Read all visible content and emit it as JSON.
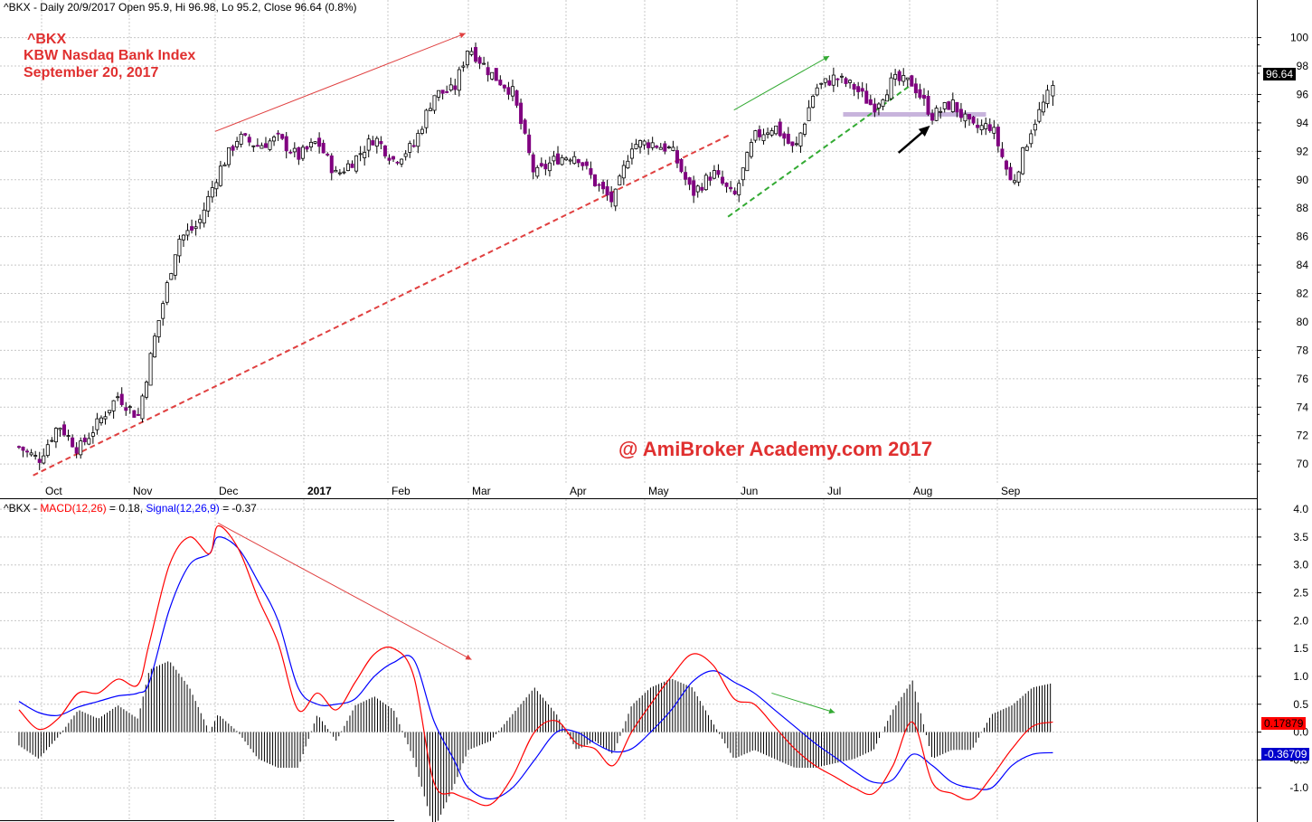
{
  "header": {
    "price": "^BKX - Daily 20/9/2017 Open 95.9, Hi 96.98, Lo 95.2, Close 96.64 (0.8%)",
    "macd_sym": "^BKX - ",
    "macd_part": "MACD(12,26)",
    "macd_val": " = 0.18, ",
    "signal_part": "Signal(12,26,9)",
    "signal_val": " = -0.37"
  },
  "title_block": {
    "line1": "^BKX",
    "line2": "KBW Nasdaq Bank Index",
    "line3": "September 20, 2017"
  },
  "watermark": "@ AmiBroker Academy.com    2017",
  "value_tags": {
    "close": "96.64",
    "macd": "0.17879",
    "signal": "-0.36709"
  },
  "colors": {
    "bull_body": "#ffffff",
    "bear_body": "#800080",
    "wick": "#000000",
    "macd_line": "#ff0000",
    "signal_line": "#0000ff",
    "histogram": "#000000",
    "trend_red": "#e04040",
    "trend_green": "#33aa33",
    "support_zone": "#c8b4dc",
    "annotation_arrow": "#000000",
    "watermark": "#e03030",
    "title": "#e03030",
    "close_tag": "#000000",
    "macd_tag": "#ff0000",
    "signal_tag": "#0000cc"
  },
  "chart_data": [
    {
      "type": "candlestick",
      "title": "^BKX - Daily 20/9/2017 Open 95.9, Hi 96.98, Lo 95.2, Close 96.64 (0.8%)",
      "x_tick_labels": [
        "Oct",
        "Nov",
        "Dec",
        "2017",
        "Feb",
        "Mar",
        "Apr",
        "May",
        "Jun",
        "Jul",
        "Aug",
        "Sep"
      ],
      "y_tick_labels": [
        70,
        72,
        74,
        76,
        78,
        80,
        82,
        84,
        86,
        88,
        90,
        92,
        94,
        96,
        98,
        100
      ],
      "ylim": [
        68.8,
        101.5
      ],
      "grid": true,
      "last_close": 96.64,
      "support_zone": {
        "date_start": "2017-07-08",
        "date_end": "2017-08-28",
        "price": 94.6
      },
      "trendlines": [
        {
          "style": "solid",
          "color": "red",
          "x": [
            "2016-12-01",
            "2017-02-28"
          ],
          "y": [
            93.4,
            100.3
          ]
        },
        {
          "style": "dashed",
          "color": "red",
          "x": [
            "2016-09-28",
            "2017-05-30"
          ],
          "y": [
            69.2,
            93.2
          ]
        },
        {
          "style": "solid",
          "color": "green",
          "x": [
            "2017-05-31",
            "2017-07-03"
          ],
          "y": [
            94.9,
            98.7
          ]
        },
        {
          "style": "dashed",
          "color": "green",
          "x": [
            "2017-05-29",
            "2017-08-01"
          ],
          "y": [
            87.4,
            96.6
          ]
        }
      ],
      "arrow": {
        "color": "black",
        "x": [
          "2017-07-28",
          "2017-08-07"
        ],
        "y": [
          91.9,
          93.6
        ]
      },
      "closes": [
        {
          "x": "2016-09-23",
          "y": 71.2
        },
        {
          "x": "2016-09-30",
          "y": 70.3
        },
        {
          "x": "2016-10-07",
          "y": 72.8
        },
        {
          "x": "2016-10-14",
          "y": 71.0
        },
        {
          "x": "2016-10-21",
          "y": 72.9
        },
        {
          "x": "2016-10-28",
          "y": 74.8
        },
        {
          "x": "2016-11-04",
          "y": 73.3
        },
        {
          "x": "2016-11-10",
          "y": 79.0
        },
        {
          "x": "2016-11-18",
          "y": 85.8
        },
        {
          "x": "2016-11-25",
          "y": 86.8
        },
        {
          "x": "2016-12-02",
          "y": 90.5
        },
        {
          "x": "2016-12-09",
          "y": 93.0
        },
        {
          "x": "2016-12-16",
          "y": 92.4
        },
        {
          "x": "2016-12-23",
          "y": 92.9
        },
        {
          "x": "2016-12-30",
          "y": 91.6
        },
        {
          "x": "2017-01-06",
          "y": 92.7
        },
        {
          "x": "2017-01-13",
          "y": 90.3
        },
        {
          "x": "2017-01-20",
          "y": 91.5
        },
        {
          "x": "2017-01-27",
          "y": 93.0
        },
        {
          "x": "2017-02-03",
          "y": 91.4
        },
        {
          "x": "2017-02-10",
          "y": 92.4
        },
        {
          "x": "2017-02-17",
          "y": 96.0
        },
        {
          "x": "2017-02-24",
          "y": 96.3
        },
        {
          "x": "2017-03-01",
          "y": 99.4
        },
        {
          "x": "2017-03-08",
          "y": 97.5
        },
        {
          "x": "2017-03-15",
          "y": 96.2
        },
        {
          "x": "2017-03-22",
          "y": 90.3
        },
        {
          "x": "2017-03-29",
          "y": 91.5
        },
        {
          "x": "2017-04-05",
          "y": 91.8
        },
        {
          "x": "2017-04-12",
          "y": 89.8
        },
        {
          "x": "2017-04-19",
          "y": 88.4
        },
        {
          "x": "2017-04-26",
          "y": 92.5
        },
        {
          "x": "2017-05-03",
          "y": 92.6
        },
        {
          "x": "2017-05-10",
          "y": 92.1
        },
        {
          "x": "2017-05-17",
          "y": 89.0
        },
        {
          "x": "2017-05-24",
          "y": 90.5
        },
        {
          "x": "2017-05-31",
          "y": 88.7
        },
        {
          "x": "2017-06-07",
          "y": 93.0
        },
        {
          "x": "2017-06-14",
          "y": 93.8
        },
        {
          "x": "2017-06-21",
          "y": 92.0
        },
        {
          "x": "2017-06-28",
          "y": 96.4
        },
        {
          "x": "2017-07-05",
          "y": 97.2
        },
        {
          "x": "2017-07-12",
          "y": 96.5
        },
        {
          "x": "2017-07-19",
          "y": 95.1
        },
        {
          "x": "2017-07-26",
          "y": 97.0
        },
        {
          "x": "2017-08-02",
          "y": 96.8
        },
        {
          "x": "2017-08-09",
          "y": 94.5
        },
        {
          "x": "2017-08-16",
          "y": 95.4
        },
        {
          "x": "2017-08-23",
          "y": 93.6
        },
        {
          "x": "2017-08-30",
          "y": 93.8
        },
        {
          "x": "2017-09-06",
          "y": 89.6
        },
        {
          "x": "2017-09-13",
          "y": 93.8
        },
        {
          "x": "2017-09-20",
          "y": 96.64
        }
      ]
    },
    {
      "type": "line",
      "title": "^BKX - MACD(12,26) = 0.18, Signal(12,26,9) = -0.37",
      "y_tick_labels": [
        "4.0",
        "3.5",
        "3.0",
        "2.5",
        "2.0",
        "1.5",
        "1.0",
        "0.5",
        "0.0",
        "-0.5",
        "-1.0"
      ],
      "ylim": [
        -1.5,
        4.05
      ],
      "grid": true,
      "last_macd": 0.17879,
      "last_signal": -0.36709,
      "trendlines": [
        {
          "color": "red",
          "x": [
            "2016-12-02",
            "2017-03-02"
          ],
          "y": [
            3.75,
            1.3
          ]
        },
        {
          "color": "green",
          "x": [
            "2017-06-13",
            "2017-07-05"
          ],
          "y": [
            0.7,
            0.35
          ]
        }
      ],
      "series": [
        {
          "name": "MACD(12,26)",
          "color": "red",
          "x": [
            "2016-09-23",
            "2016-09-30",
            "2016-10-07",
            "2016-10-14",
            "2016-10-21",
            "2016-10-28",
            "2016-11-04",
            "2016-11-08",
            "2016-11-15",
            "2016-11-22",
            "2016-11-29",
            "2016-12-02",
            "2016-12-09",
            "2016-12-16",
            "2016-12-23",
            "2016-12-30",
            "2017-01-06",
            "2017-01-13",
            "2017-01-20",
            "2017-01-27",
            "2017-02-03",
            "2017-02-10",
            "2017-02-17",
            "2017-02-24",
            "2017-03-01",
            "2017-03-08",
            "2017-03-15",
            "2017-03-22",
            "2017-03-29",
            "2017-04-05",
            "2017-04-12",
            "2017-04-19",
            "2017-04-26",
            "2017-05-03",
            "2017-05-10",
            "2017-05-17",
            "2017-05-24",
            "2017-05-31",
            "2017-06-07",
            "2017-06-14",
            "2017-06-21",
            "2017-06-28",
            "2017-07-05",
            "2017-07-12",
            "2017-07-19",
            "2017-07-26",
            "2017-08-02",
            "2017-08-09",
            "2017-08-16",
            "2017-08-23",
            "2017-08-30",
            "2017-09-06",
            "2017-09-13",
            "2017-09-20"
          ],
          "values": [
            0.4,
            0.05,
            0.25,
            0.7,
            0.7,
            0.95,
            0.85,
            1.6,
            3.0,
            3.5,
            3.2,
            3.7,
            3.3,
            2.4,
            1.6,
            0.4,
            0.7,
            0.4,
            0.9,
            1.4,
            1.5,
            1.0,
            -0.9,
            -1.1,
            -1.2,
            -1.3,
            -0.8,
            0.0,
            0.2,
            -0.2,
            -0.3,
            -0.6,
            0.0,
            0.5,
            1.0,
            1.4,
            1.2,
            0.6,
            0.5,
            0.1,
            -0.3,
            -0.6,
            -0.8,
            -1.0,
            -1.1,
            -0.6,
            0.18,
            -0.9,
            -1.1,
            -1.2,
            -0.8,
            -0.3,
            0.1,
            0.18
          ]
        },
        {
          "name": "Signal(12,26,9)",
          "color": "blue",
          "x": [
            "2016-09-23",
            "2016-09-30",
            "2016-10-07",
            "2016-10-14",
            "2016-10-21",
            "2016-10-28",
            "2016-11-04",
            "2016-11-08",
            "2016-11-15",
            "2016-11-22",
            "2016-11-29",
            "2016-12-02",
            "2016-12-09",
            "2016-12-16",
            "2016-12-23",
            "2016-12-30",
            "2017-01-06",
            "2017-01-13",
            "2017-01-20",
            "2017-01-27",
            "2017-02-03",
            "2017-02-10",
            "2017-02-17",
            "2017-02-24",
            "2017-03-01",
            "2017-03-08",
            "2017-03-15",
            "2017-03-22",
            "2017-03-29",
            "2017-04-05",
            "2017-04-12",
            "2017-04-19",
            "2017-04-26",
            "2017-05-03",
            "2017-05-10",
            "2017-05-17",
            "2017-05-24",
            "2017-05-31",
            "2017-06-07",
            "2017-06-14",
            "2017-06-21",
            "2017-06-28",
            "2017-07-05",
            "2017-07-12",
            "2017-07-19",
            "2017-07-26",
            "2017-08-02",
            "2017-08-09",
            "2017-08-16",
            "2017-08-23",
            "2017-08-30",
            "2017-09-06",
            "2017-09-13",
            "2017-09-20"
          ],
          "values": [
            0.55,
            0.35,
            0.3,
            0.45,
            0.55,
            0.65,
            0.7,
            0.9,
            2.2,
            3.0,
            3.2,
            3.5,
            3.3,
            2.7,
            2.0,
            0.8,
            0.5,
            0.5,
            0.6,
            1.0,
            1.25,
            1.3,
            0.2,
            -0.5,
            -1.0,
            -1.2,
            -1.0,
            -0.5,
            0.0,
            0.0,
            -0.2,
            -0.35,
            -0.3,
            0.0,
            0.4,
            0.9,
            1.1,
            0.9,
            0.7,
            0.4,
            0.1,
            -0.2,
            -0.45,
            -0.7,
            -0.9,
            -0.85,
            -0.4,
            -0.6,
            -0.9,
            -1.0,
            -1.0,
            -0.6,
            -0.4,
            -0.37
          ]
        }
      ]
    }
  ]
}
